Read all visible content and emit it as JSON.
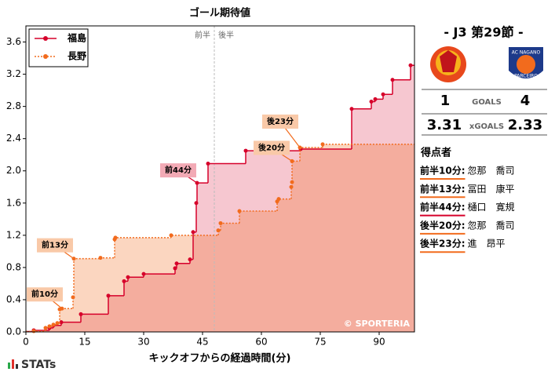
{
  "chart_data": {
    "type": "step",
    "title": "ゴール期待値",
    "x_label": "キックオフからの経過時間(分)",
    "xlim": [
      0,
      99
    ],
    "ylim": [
      0,
      3.8
    ],
    "xticks": [
      0,
      15,
      30,
      45,
      60,
      75,
      90
    ],
    "yticks": [
      {
        "value": 0,
        "label": "0.0"
      },
      0.4,
      0.8,
      1.2,
      1.6,
      {
        "value": 2,
        "label": "2.0"
      },
      2.4,
      2.8,
      3.2,
      3.6
    ],
    "halftime_x": 48,
    "half_labels": [
      "前半",
      "後半"
    ],
    "legend": "upper left",
    "copyright": "© SPORTERIA",
    "series": [
      {
        "name": "福島",
        "color": "#d6002a",
        "style": "solid",
        "x": [
          2,
          6,
          7,
          9,
          14,
          21,
          25,
          26,
          30,
          38,
          38.4,
          41.8,
          42.6,
          43.4,
          43.6,
          46.4,
          56,
          70,
          83,
          88,
          89,
          91,
          93.4,
          98
        ],
        "values": [
          0.02,
          0.05,
          0.08,
          0.12,
          0.22,
          0.45,
          0.63,
          0.68,
          0.72,
          0.79,
          0.85,
          0.9,
          1.24,
          1.6,
          1.85,
          2.09,
          2.25,
          2.27,
          2.77,
          2.86,
          2.89,
          2.95,
          3.13,
          3.31
        ]
      },
      {
        "name": "長野",
        "color": "#f26b1d",
        "style": "dotted",
        "x": [
          2,
          5,
          6,
          7,
          8,
          8.6,
          9.2,
          12,
          12.2,
          19,
          22.6,
          22.8,
          37,
          49,
          49.6,
          54.4,
          64,
          64.4,
          67.6,
          67.8,
          67.8,
          69.8,
          75.6
        ],
        "values": [
          0.01,
          0.05,
          0.07,
          0.09,
          0.11,
          0.28,
          0.29,
          0.43,
          0.91,
          0.92,
          1.15,
          1.17,
          1.2,
          1.26,
          1.35,
          1.5,
          1.62,
          1.65,
          1.8,
          1.86,
          2.12,
          2.29,
          2.33
        ]
      }
    ],
    "annotations": [
      {
        "text": "前10分",
        "x": 9.2,
        "y": 0.29,
        "color": "#f9c9a8",
        "line_color": "#f26b1d"
      },
      {
        "text": "前13分",
        "x": 12.2,
        "y": 0.91,
        "color": "#f9c9a8",
        "line_color": "#f26b1d"
      },
      {
        "text": "前44分",
        "x": 43.6,
        "y": 1.85,
        "color": "#f2aab5",
        "line_color": "#d6002a"
      },
      {
        "text": "後20分",
        "x": 67.8,
        "y": 2.12,
        "color": "#f9c9a8",
        "line_color": "#f26b1d"
      },
      {
        "text": "後23分",
        "x": 69.8,
        "y": 2.29,
        "color": "#f9c9a8",
        "line_color": "#f26b1d"
      }
    ]
  },
  "match": {
    "round": "- J3 第29節 -",
    "away_logo_texts": [
      "AC NAGANO",
      "PARCEIRO"
    ],
    "home_goals": "1",
    "goals_label": "GOALS",
    "away_goals": "4",
    "home_xg": "3.31",
    "xg_label": "xGOALS",
    "away_xg": "2.33",
    "scorers_title": "得点者",
    "scorers": [
      {
        "time": "前半10分:",
        "name": "忽那　喬司",
        "color": "#f26b1d"
      },
      {
        "time": "前半13分:",
        "name": "冨田　康平",
        "color": "#f26b1d"
      },
      {
        "time": "前半44分:",
        "name": "樋口　寛規",
        "color": "#d6002a"
      },
      {
        "time": "後半20分:",
        "name": "忽那　喬司",
        "color": "#f26b1d"
      },
      {
        "time": "後半23分:",
        "name": "進　昂平",
        "color": "#f26b1d"
      }
    ]
  },
  "brand": "STATs"
}
